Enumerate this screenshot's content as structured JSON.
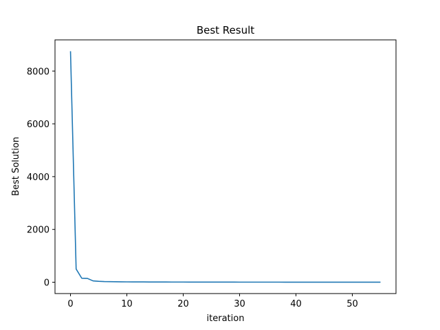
{
  "chart_data": {
    "type": "line",
    "title": "Best Result",
    "xlabel": "iteration",
    "ylabel": "Best Solution",
    "xlim": [
      -2.75,
      57.75
    ],
    "ylim": [
      -430,
      9180
    ],
    "xticks": [
      0,
      10,
      20,
      30,
      40,
      50
    ],
    "yticks": [
      0,
      2000,
      4000,
      6000,
      8000
    ],
    "grid": false,
    "series": [
      {
        "color": "#1f77b4",
        "x": [
          0,
          1,
          2,
          3,
          4,
          5,
          6,
          7,
          8,
          9,
          10,
          11,
          12,
          13,
          14,
          15,
          16,
          17,
          18,
          19,
          20,
          21,
          22,
          23,
          24,
          25,
          26,
          27,
          28,
          29,
          30,
          31,
          32,
          33,
          34,
          35,
          36,
          37,
          38,
          39,
          40,
          41,
          42,
          43,
          44,
          45,
          46,
          47,
          48,
          49,
          50,
          51,
          52,
          53,
          54,
          55
        ],
        "values": [
          8750,
          500,
          150,
          145,
          50,
          35,
          25,
          22,
          18,
          15,
          13,
          12,
          11,
          10,
          8,
          8,
          7,
          7,
          6,
          6,
          6,
          5,
          5,
          5,
          5,
          4,
          4,
          4,
          4,
          4,
          3,
          3,
          3,
          3,
          3,
          3,
          3,
          3,
          2,
          2,
          2,
          2,
          2,
          2,
          2,
          2,
          2,
          2,
          2,
          2,
          2,
          2,
          2,
          2,
          2,
          2
        ]
      }
    ]
  }
}
